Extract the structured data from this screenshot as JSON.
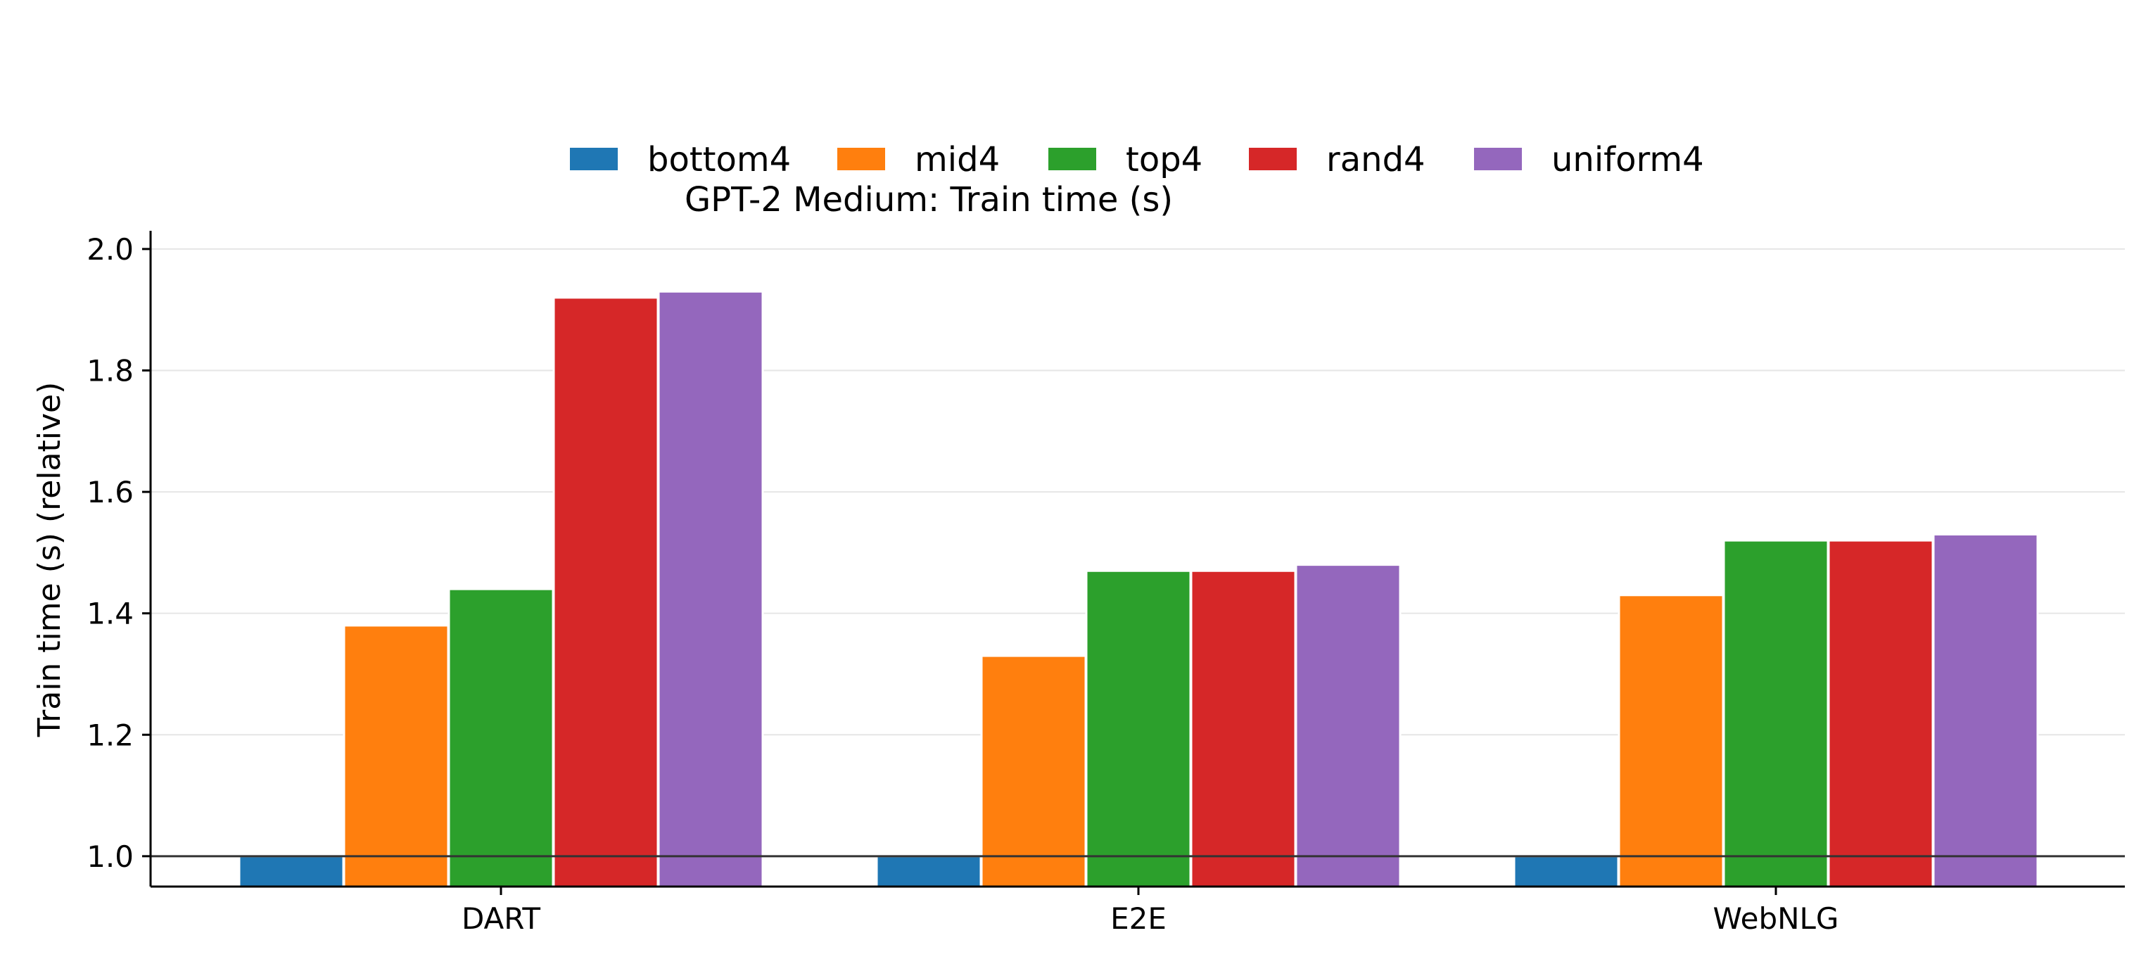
{
  "chart_data": {
    "type": "bar",
    "title": "GPT-2 Medium: Train time (s)",
    "xlabel": "",
    "ylabel": "Train time (s) (relative)",
    "ylim": [
      0.95,
      2.03
    ],
    "yticks": [
      "1.0",
      "1.2",
      "1.4",
      "1.6",
      "1.8",
      "2.0"
    ],
    "ytick_values": [
      1.0,
      1.2,
      1.4,
      1.6,
      1.8,
      2.0
    ],
    "baseline": 1.0,
    "grid": "horizontal",
    "legend_position": "top-center",
    "categories": [
      "DART",
      "E2E",
      "WebNLG"
    ],
    "series": [
      {
        "name": "bottom4",
        "color": "#1f77b4",
        "values": [
          1.0,
          1.0,
          1.0
        ]
      },
      {
        "name": "mid4",
        "color": "#ff7f0e",
        "values": [
          1.38,
          1.33,
          1.43
        ]
      },
      {
        "name": "top4",
        "color": "#2ca02c",
        "values": [
          1.44,
          1.47,
          1.52
        ]
      },
      {
        "name": "rand4",
        "color": "#d62728",
        "values": [
          1.92,
          1.47,
          1.52
        ]
      },
      {
        "name": "uniform4",
        "color": "#9467bd",
        "values": [
          1.93,
          1.48,
          1.53
        ]
      }
    ]
  }
}
